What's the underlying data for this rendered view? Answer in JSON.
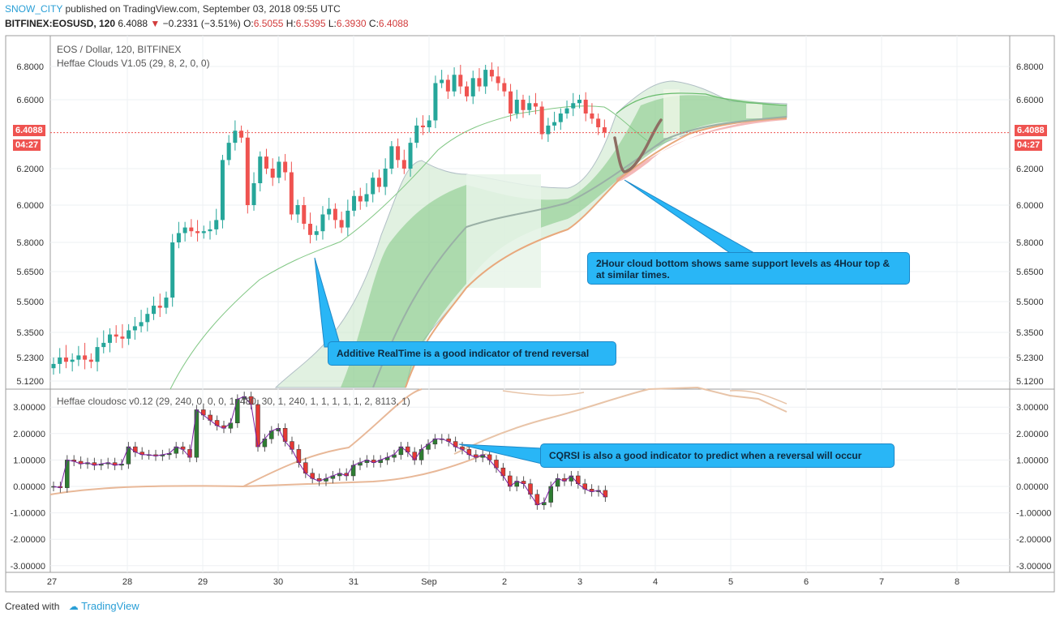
{
  "header": {
    "user": "SNOW_CITY",
    "published": "published on TradingView.com, September 03, 2018 09:55 UTC",
    "symbol": "BITFINEX:EOSUSD, 120",
    "last": "6.4088",
    "change": "−0.2331 (−3.51%)",
    "o_label": "O:",
    "o": "6.5055",
    "h_label": "H:",
    "h": "6.5395",
    "l_label": "L:",
    "l": "6.3930",
    "c_label": "C:",
    "c": "6.4088"
  },
  "main_legend": {
    "line1": "EOS / Dollar, 120, BITFINEX",
    "line2": "Heffae Clouds V1.05 (29, 8, 2, 0, 0)"
  },
  "sub_legend": "Heffae cloudosc v0.12 (29, 240, 0, 0, 0, 1, 480, 30, 1, 240, 1, 1, 1, 1, 1, 2, 8113, 1)",
  "price_tag": {
    "value": "6.4088",
    "timer": "04:27"
  },
  "annotations": {
    "cloud": "2Hour cloud bottom shows same support levels as 4Hour top & at similar times.",
    "additive": "Additive RealTime is a good indicator of trend reversal",
    "cqrsi": "CQRSI is also a good indicator to predict when a reversal will occur"
  },
  "footer": {
    "created": "Created with",
    "brand": "TradingView"
  },
  "colors": {
    "up": "#26a69a",
    "down": "#ef5350",
    "cloud_green": "#66bb6a",
    "cloud_red": "#ef9a9a",
    "callout": "#29b6f6"
  },
  "chart_data": [
    {
      "type": "candlestick",
      "title": "EOS / Dollar, 120, BITFINEX",
      "y_ticks": [
        "6.8000",
        "6.6000",
        "6.2000",
        "6.0000",
        "5.8000",
        "5.6500",
        "5.5000",
        "5.3500",
        "5.2300",
        "5.1200"
      ],
      "x_ticks": [
        "27",
        "28",
        "29",
        "30",
        "31",
        "Sep",
        "2",
        "3",
        "4",
        "5",
        "6",
        "7",
        "8"
      ],
      "ylim": [
        5.1,
        6.85
      ],
      "last_price": 6.4088,
      "close_series": [
        5.2,
        5.23,
        5.21,
        5.22,
        5.24,
        5.22,
        5.21,
        5.28,
        5.3,
        5.34,
        5.33,
        5.32,
        5.36,
        5.38,
        5.4,
        5.44,
        5.48,
        5.47,
        5.52,
        5.8,
        5.85,
        5.88,
        5.86,
        5.85,
        5.86,
        5.87,
        5.92,
        6.25,
        6.35,
        6.42,
        6.38,
        6.0,
        6.12,
        6.27,
        6.2,
        6.15,
        6.24,
        6.18,
        5.95,
        6.0,
        5.9,
        5.84,
        5.86,
        5.95,
        5.98,
        5.92,
        5.88,
        5.97,
        6.05,
        6.02,
        6.06,
        6.15,
        6.1,
        6.2,
        6.33,
        6.25,
        6.2,
        6.35,
        6.45,
        6.44,
        6.48,
        6.7,
        6.72,
        6.65,
        6.75,
        6.68,
        6.62,
        6.73,
        6.68,
        6.78,
        6.74,
        6.7,
        6.65,
        6.52,
        6.6,
        6.54,
        6.58,
        6.56,
        6.4,
        6.45,
        6.47,
        6.52,
        6.55,
        6.58,
        6.6,
        6.52,
        6.49,
        6.44,
        6.41
      ]
    },
    {
      "type": "line",
      "title": "Heffae cloudosc v0.12",
      "y_ticks": [
        "3.00000",
        "2.00000",
        "1.00000",
        "0.00000",
        "-1.00000",
        "-2.00000",
        "-3.00000"
      ],
      "ylim": [
        -3.2,
        3.6
      ],
      "osc_series": [
        0.0,
        -0.05,
        1.0,
        0.95,
        0.85,
        0.9,
        0.8,
        0.85,
        0.9,
        0.8,
        0.85,
        1.5,
        1.3,
        1.2,
        1.2,
        1.15,
        1.2,
        1.25,
        1.5,
        1.4,
        1.1,
        2.9,
        2.7,
        2.5,
        2.3,
        2.2,
        2.4,
        3.3,
        3.4,
        3.1,
        1.5,
        1.8,
        2.1,
        2.2,
        1.7,
        1.4,
        0.9,
        0.5,
        0.3,
        0.2,
        0.3,
        0.4,
        0.5,
        0.4,
        0.8,
        0.9,
        1.0,
        0.9,
        1.0,
        1.1,
        1.2,
        1.5,
        1.3,
        1.0,
        1.4,
        1.6,
        1.8,
        1.8,
        1.7,
        1.5,
        1.4,
        1.2,
        1.1,
        1.2,
        1.0,
        0.7,
        0.4,
        0.0,
        0.2,
        0.1,
        -0.3,
        -0.7,
        -0.6,
        0.0,
        0.3,
        0.2,
        0.4,
        0.1,
        -0.1,
        -0.2,
        -0.15,
        -0.4
      ]
    }
  ]
}
